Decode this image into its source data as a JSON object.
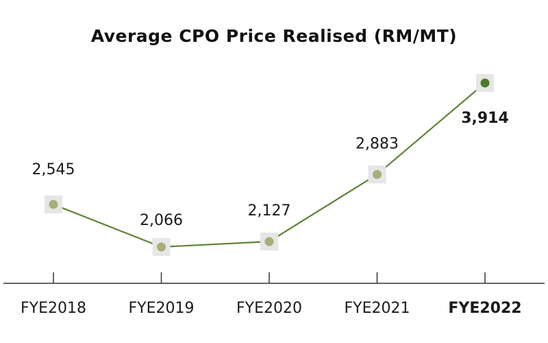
{
  "chart_data": {
    "type": "line",
    "title": "Average CPO Price Realised (RM/MT)",
    "categories": [
      "FYE2018",
      "FYE2019",
      "FYE2020",
      "FYE2021",
      "FYE2022"
    ],
    "values": [
      2545,
      2066,
      2127,
      2883,
      3914
    ],
    "data_labels": [
      "2,545",
      "2,066",
      "2,127",
      "2,883",
      "3,914"
    ],
    "highlight_index": 4,
    "grid": false,
    "legend": "none",
    "colors": {
      "line": "#5e8236",
      "marker": "#a7ae7a",
      "marker_highlight": "#4f7a28",
      "marker_shadow": "#e6e6e6",
      "axis": "#333333"
    }
  }
}
